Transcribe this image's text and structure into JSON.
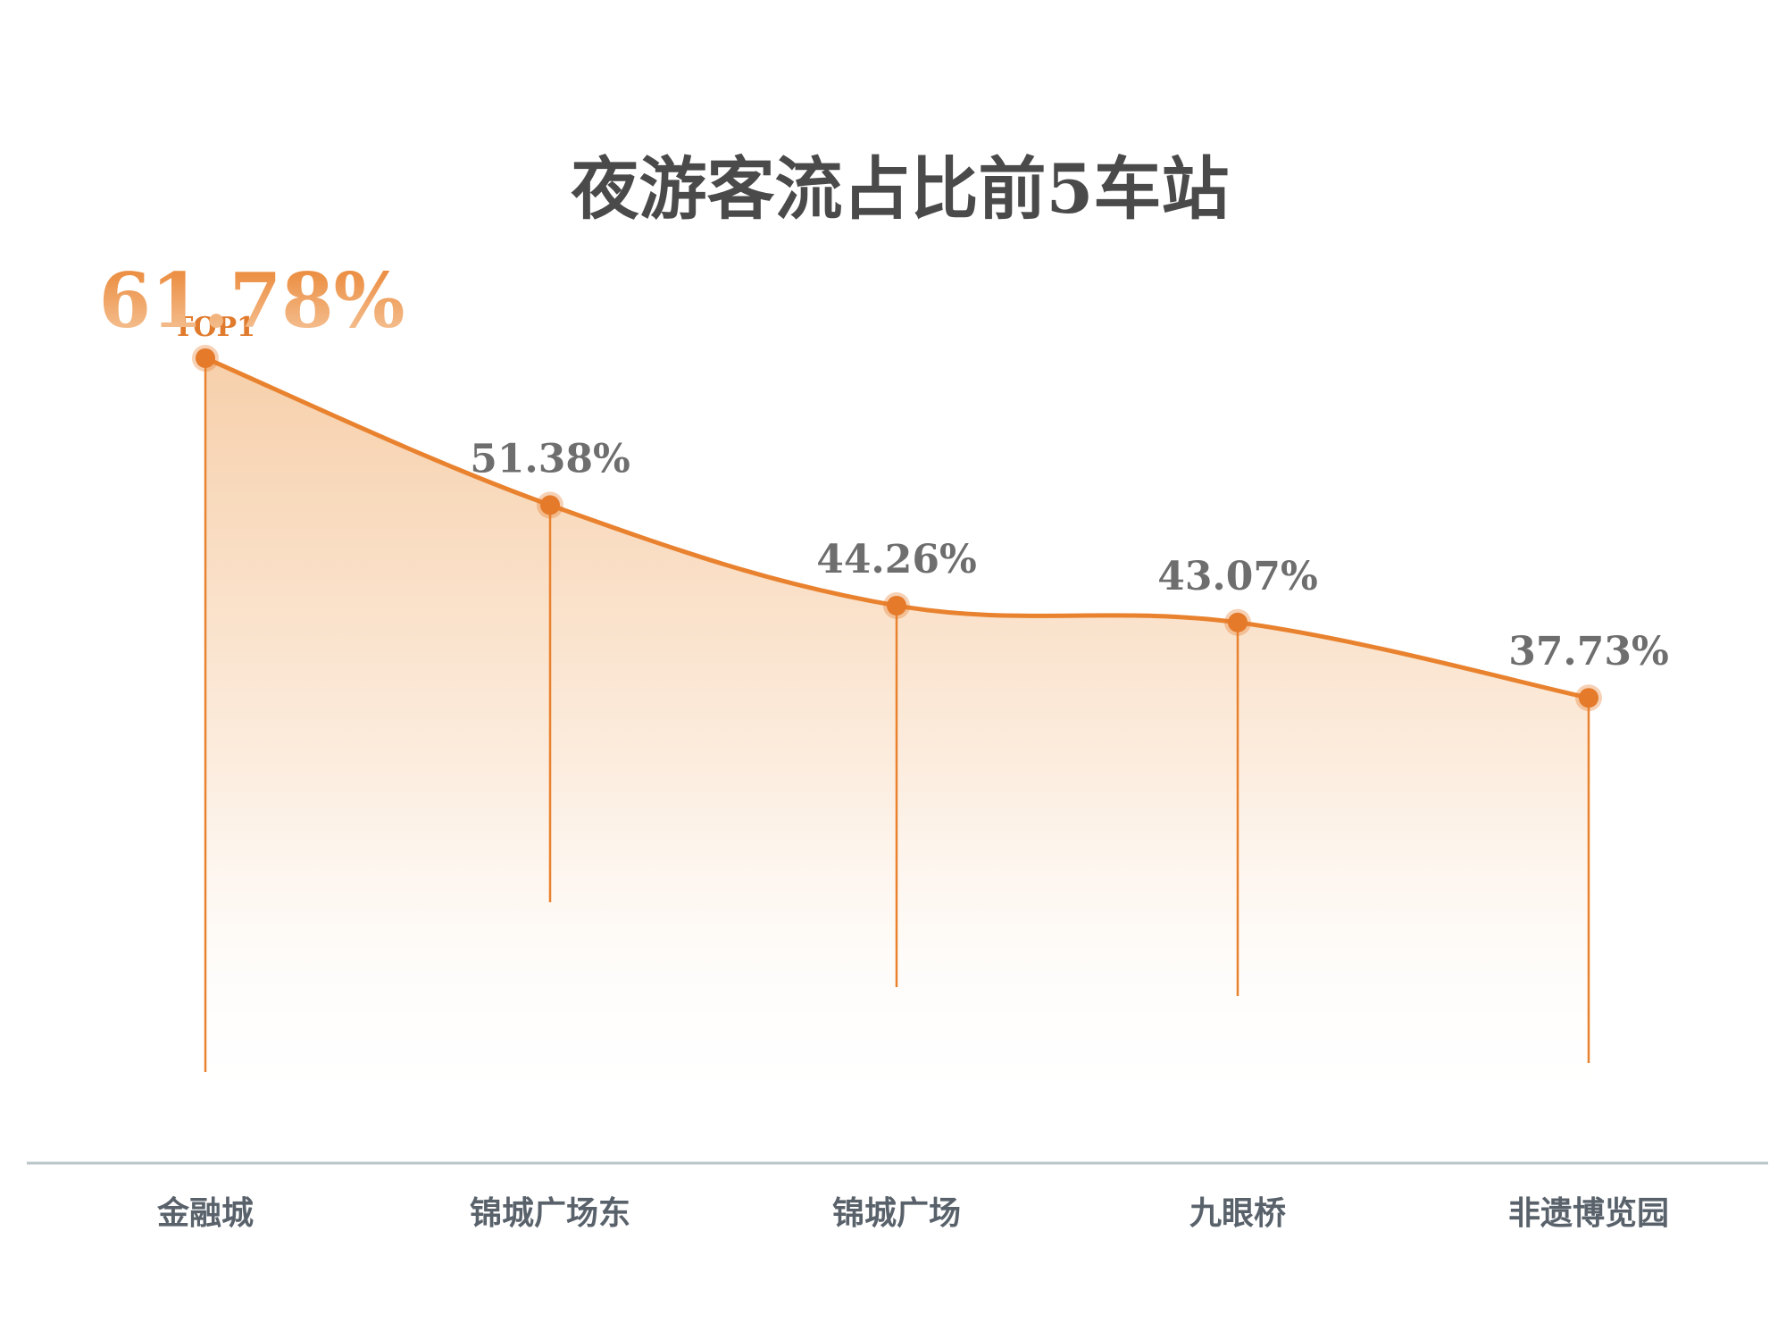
{
  "chart_data": {
    "type": "area",
    "title": "夜游客流占比前5车站",
    "categories": [
      "金融城",
      "锦城广场东",
      "锦城广场",
      "九眼桥",
      "非遗博览园"
    ],
    "values": [
      61.78,
      51.38,
      44.26,
      43.07,
      37.73
    ],
    "value_labels": [
      "61.78%",
      "51.38%",
      "44.26%",
      "43.07%",
      "37.73%"
    ],
    "unit": "%",
    "highlight": {
      "index": 0,
      "badge": "TOP1"
    },
    "xlabel": "",
    "ylabel": "",
    "grid": false,
    "legend": "none"
  },
  "colors": {
    "line": "#e9822f",
    "point": "#e47a2a",
    "area_top": "#f4c08f",
    "area_bottom": "#ffffff",
    "drop_line": "#e9822f",
    "baseline": "#b9c6c9",
    "title": "#4a4a4a",
    "value_label": "#6e6e6e",
    "category_label": "#59626b",
    "top_value_start": "#e9822f",
    "top_value_end": "#f6c9a0"
  }
}
